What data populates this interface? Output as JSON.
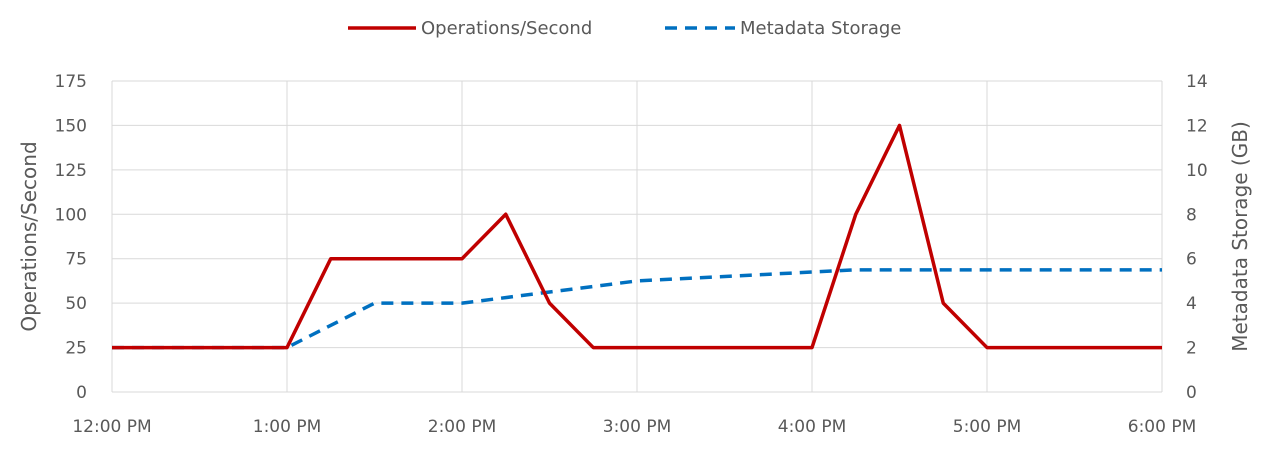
{
  "chart_data": {
    "type": "line",
    "title": "",
    "x_categories": [
      "12:00 PM",
      "1:00 PM",
      "2:00 PM",
      "3:00 PM",
      "4:00 PM",
      "5:00 PM",
      "6:00 PM"
    ],
    "x_unit": "hours from 12:00 PM",
    "ylabel_left": "Operations/Second",
    "ylabel_right": "Metadata Storage (GB)",
    "ylim_left": [
      0,
      175
    ],
    "yticks_left": [
      0,
      25,
      50,
      75,
      100,
      125,
      150,
      175
    ],
    "ylim_right": [
      0,
      14
    ],
    "yticks_right": [
      0,
      2,
      4,
      6,
      8,
      10,
      12,
      14
    ],
    "grid": true,
    "legend_position": "top",
    "series": [
      {
        "name": "Operations/Second",
        "axis": "left",
        "color": "#C00000",
        "dash": "solid",
        "x": [
          0,
          1,
          1.25,
          2,
          2.25,
          2.5,
          2.75,
          4,
          4.25,
          4.5,
          4.75,
          5,
          6
        ],
        "y": [
          25,
          25,
          75,
          75,
          100,
          50,
          25,
          25,
          100,
          150,
          50,
          25,
          25
        ]
      },
      {
        "name": "Metadata Storage",
        "axis": "right",
        "color": "#0070C0",
        "dash": "dashed",
        "x": [
          0,
          1,
          1.5,
          2,
          3,
          4,
          4.25,
          6
        ],
        "y": [
          2,
          2,
          4,
          4,
          5,
          5.4,
          5.5,
          5.5
        ]
      }
    ]
  }
}
